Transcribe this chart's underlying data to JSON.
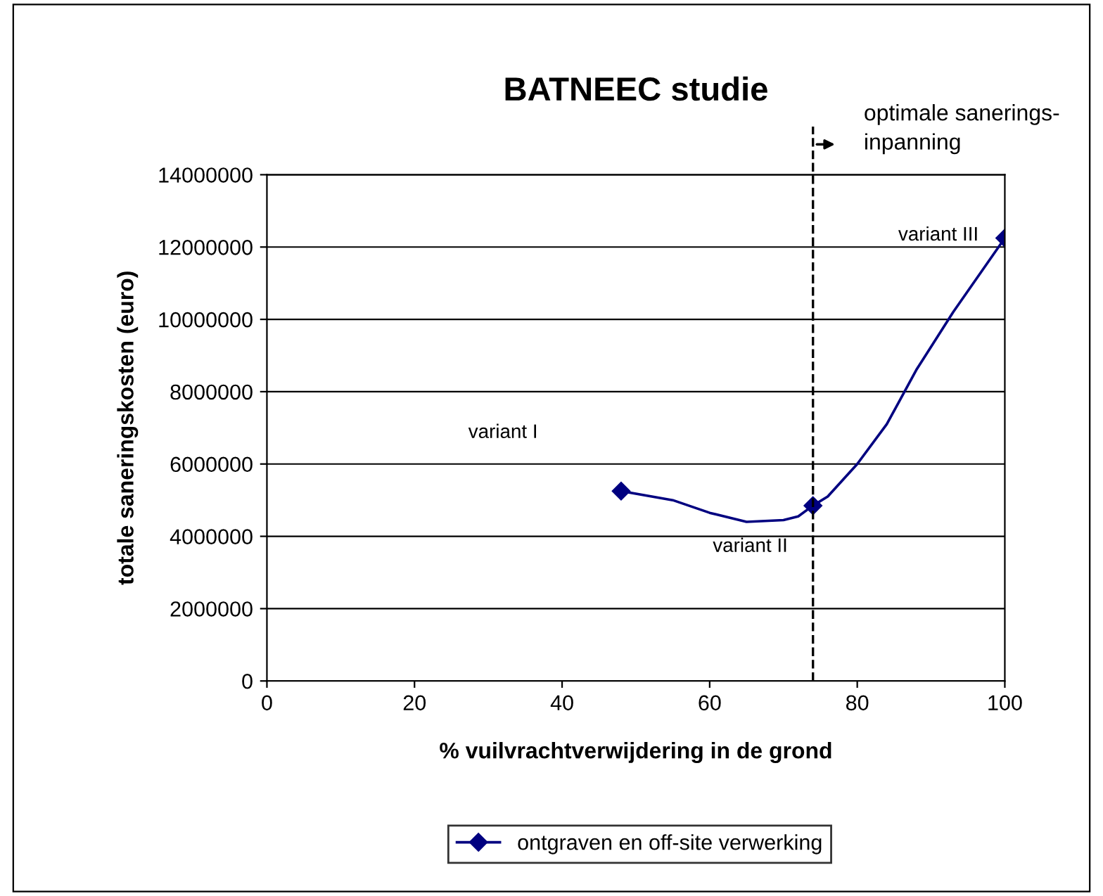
{
  "chart_data": {
    "type": "line",
    "title": "BATNEEC studie",
    "xlabel": "% vuilvrachtverwijdering in de grond",
    "ylabel": "totale saneringskosten (euro)",
    "x": [
      48,
      74,
      100
    ],
    "series": [
      {
        "name": "ontgraven en off-site verwerking",
        "color": "#000080",
        "marker": "none",
        "x": [
          48,
          55,
          60,
          65,
          70,
          72,
          74,
          76,
          80,
          84,
          88,
          93,
          100
        ],
        "values": [
          5250000,
          5000000,
          4650000,
          4400000,
          4450000,
          4550000,
          4850000,
          5100000,
          6000000,
          7100000,
          8600000,
          10200000,
          12250000
        ]
      },
      {
        "type": "scatter",
        "color": "#000080",
        "values": [
          5250000,
          4850000,
          12250000
        ]
      }
    ],
    "xlim": [
      0,
      100
    ],
    "xticks": [
      0,
      20,
      40,
      60,
      80,
      100
    ],
    "ylim": [
      0,
      14000000
    ],
    "yticks": [
      0,
      2000000,
      4000000,
      6000000,
      8000000,
      10000000,
      12000000,
      14000000
    ],
    "grid": "y",
    "legend": "bottom",
    "marker": "diamond",
    "line_style": "solid",
    "ref_lines": [
      {
        "axis": "x",
        "value": 74,
        "label": "optimale sanerings-\ninpanning",
        "color": "#000000",
        "line_style": "dashed"
      }
    ],
    "annotations": [
      "variant I",
      "variant II",
      "variant III"
    ]
  }
}
